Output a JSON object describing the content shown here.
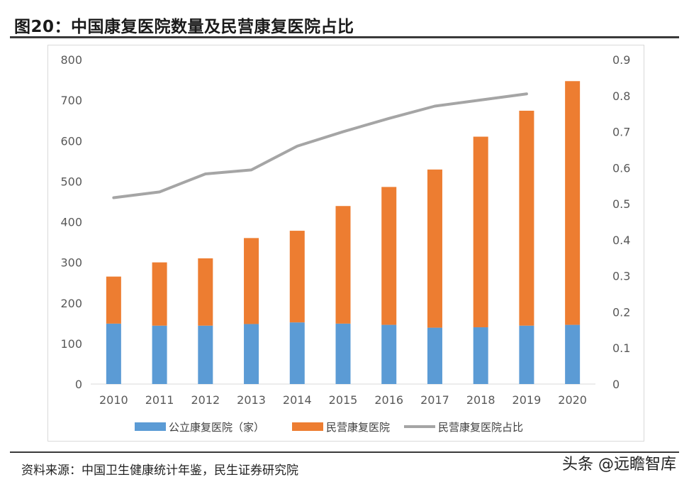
{
  "header": {
    "title": "图20：中国康复医院数量及民营康复医院占比"
  },
  "footer": {
    "source": "资料来源：中国卫生健康统计年鉴，民生证券研究院",
    "watermark": "头条 @远瞻智库"
  },
  "colors": {
    "public": "#5B9BD5",
    "private": "#ED7D31",
    "ratio": "#A5A5A5",
    "axis_text": "#595959",
    "grid": "#e6e6e6"
  },
  "chart_data": {
    "type": "bar",
    "stacked": true,
    "categories": [
      "2010",
      "2011",
      "2012",
      "2013",
      "2014",
      "2015",
      "2016",
      "2017",
      "2018",
      "2019",
      "2020"
    ],
    "series": [
      {
        "name": "公立康复医院（家）",
        "axis": "left",
        "kind": "bar",
        "values": [
          149,
          144,
          144,
          148,
          152,
          149,
          146,
          139,
          140,
          144,
          146
        ]
      },
      {
        "name": "民营康复医院",
        "axis": "left",
        "kind": "bar",
        "values": [
          116,
          156,
          166,
          212,
          226,
          290,
          340,
          390,
          470,
          530,
          601
        ]
      },
      {
        "name": "民营康复医院占比",
        "axis": "right",
        "kind": "line",
        "values": [
          0.517,
          0.533,
          0.583,
          0.594,
          0.66,
          0.7,
          0.737,
          0.771,
          0.788,
          0.805,
          null
        ]
      }
    ],
    "y_left": {
      "min": 0,
      "max": 800,
      "step": 100,
      "ticks": [
        "0",
        "100",
        "200",
        "300",
        "400",
        "500",
        "600",
        "700",
        "800"
      ]
    },
    "y_right": {
      "min": 0,
      "max": 0.9,
      "step": 0.1,
      "ticks": [
        "0",
        "0.1",
        "0.2",
        "0.3",
        "0.4",
        "0.5",
        "0.6",
        "0.7",
        "0.8",
        "0.9"
      ]
    },
    "legend": {
      "position": "bottom"
    },
    "grid": false
  }
}
